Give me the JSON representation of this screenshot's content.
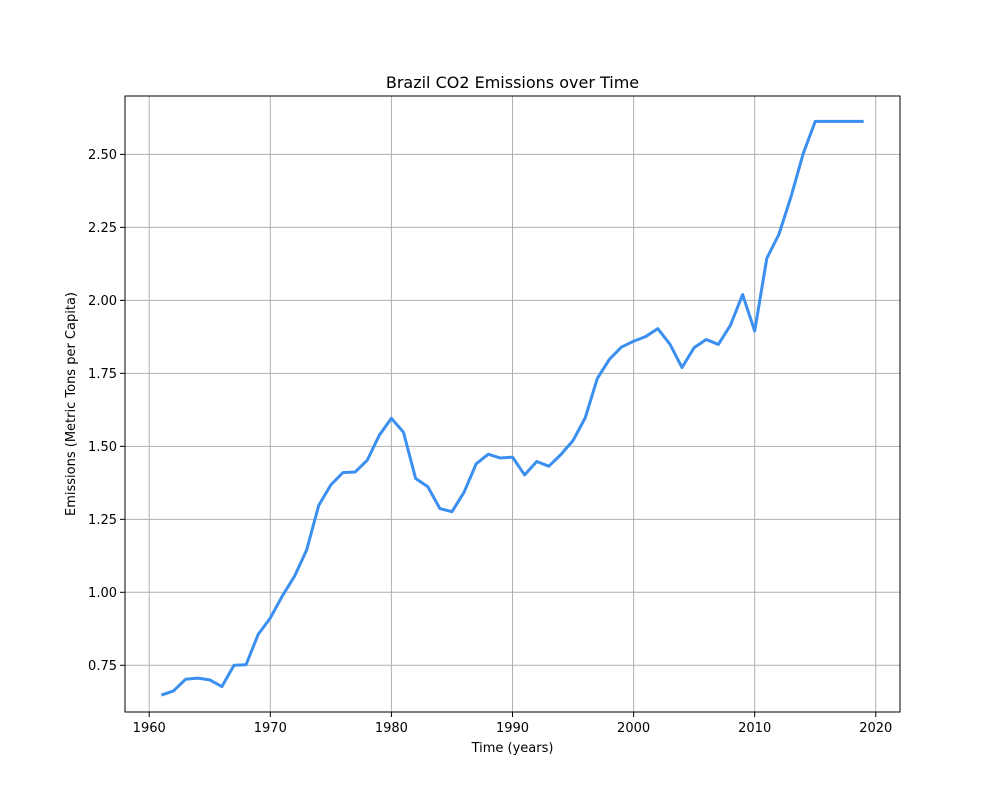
{
  "chart_data": {
    "type": "line",
    "title": "Brazil CO2 Emissions over Time",
    "xlabel": "Time (years)",
    "ylabel": "Emissions (Metric Tons per Capita)",
    "xlim": [
      1958,
      2022
    ],
    "ylim": [
      0.59,
      2.7
    ],
    "xticks": [
      1960,
      1970,
      1980,
      1990,
      2000,
      2010,
      2020
    ],
    "yticks": [
      0.75,
      1.0,
      1.25,
      1.5,
      1.75,
      2.0,
      2.25,
      2.5
    ],
    "ytick_labels": [
      "0.75",
      "1.00",
      "1.25",
      "1.50",
      "1.75",
      "2.00",
      "2.25",
      "2.50"
    ],
    "grid": true,
    "line_color": "#3b8fef",
    "series": [
      {
        "x": [
          1961,
          1962,
          1963,
          1964,
          1965,
          1966,
          1967,
          1968,
          1969,
          1970,
          1971,
          1972,
          1973,
          1974,
          1975,
          1976,
          1977,
          1978,
          1979,
          1980,
          1981,
          1982,
          1983,
          1984,
          1985,
          1986,
          1987,
          1988,
          1989,
          1990,
          1991,
          1992,
          1993,
          1994,
          1995,
          1996,
          1997,
          1998,
          1999,
          2000,
          2001,
          2002,
          2003,
          2004,
          2005,
          2006,
          2007,
          2008,
          2009,
          2010,
          2011,
          2012,
          2013,
          2014,
          2015,
          2016,
          2017,
          2018,
          2019
        ],
        "values": [
          0.648,
          0.662,
          0.702,
          0.706,
          0.7,
          0.677,
          0.75,
          0.752,
          0.856,
          0.912,
          0.988,
          1.055,
          1.145,
          1.298,
          1.368,
          1.41,
          1.412,
          1.452,
          1.538,
          1.596,
          1.548,
          1.39,
          1.362,
          1.287,
          1.276,
          1.343,
          1.44,
          1.473,
          1.46,
          1.463,
          1.402,
          1.448,
          1.432,
          1.472,
          1.52,
          1.597,
          1.732,
          1.798,
          1.84,
          1.86,
          1.876,
          1.903,
          1.85,
          1.77,
          1.838,
          1.866,
          1.849,
          1.915,
          2.02,
          1.895,
          2.144,
          2.226,
          2.355,
          2.502,
          2.613,
          2.613,
          2.613,
          2.613,
          2.613
        ]
      }
    ]
  }
}
